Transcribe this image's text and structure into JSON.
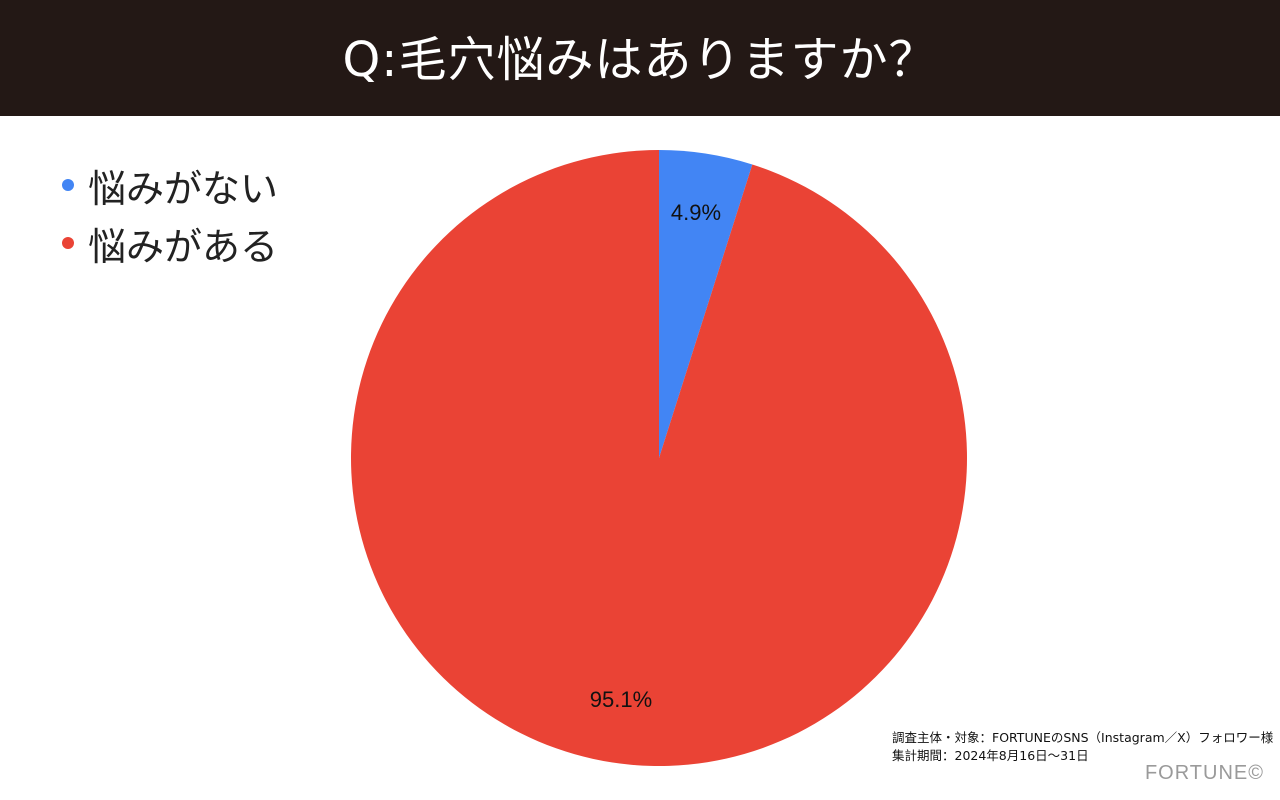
{
  "chart_data": {
    "type": "pie",
    "title": "Q:毛穴悩みはありますか？",
    "categories": [
      "悩みがない",
      "悩みがある"
    ],
    "values": [
      4.9,
      95.1
    ],
    "data_labels": [
      "4.9%",
      "95.1%"
    ],
    "colors": [
      "#4285F4",
      "#EA4335"
    ],
    "legend_position": "top-left",
    "start_angle": "12 o'clock, clockwise"
  },
  "footnote": {
    "line1": "調査主体・対象：FORTUNEのSNS（Instagram／X）フォロワー様",
    "line2": "集計期間：2024年8月16日〜31日"
  },
  "brand": {
    "logo_text": "FORTUNE©"
  },
  "colors": {
    "title_bar": "#231815",
    "title_text": "#FFFFFF"
  }
}
